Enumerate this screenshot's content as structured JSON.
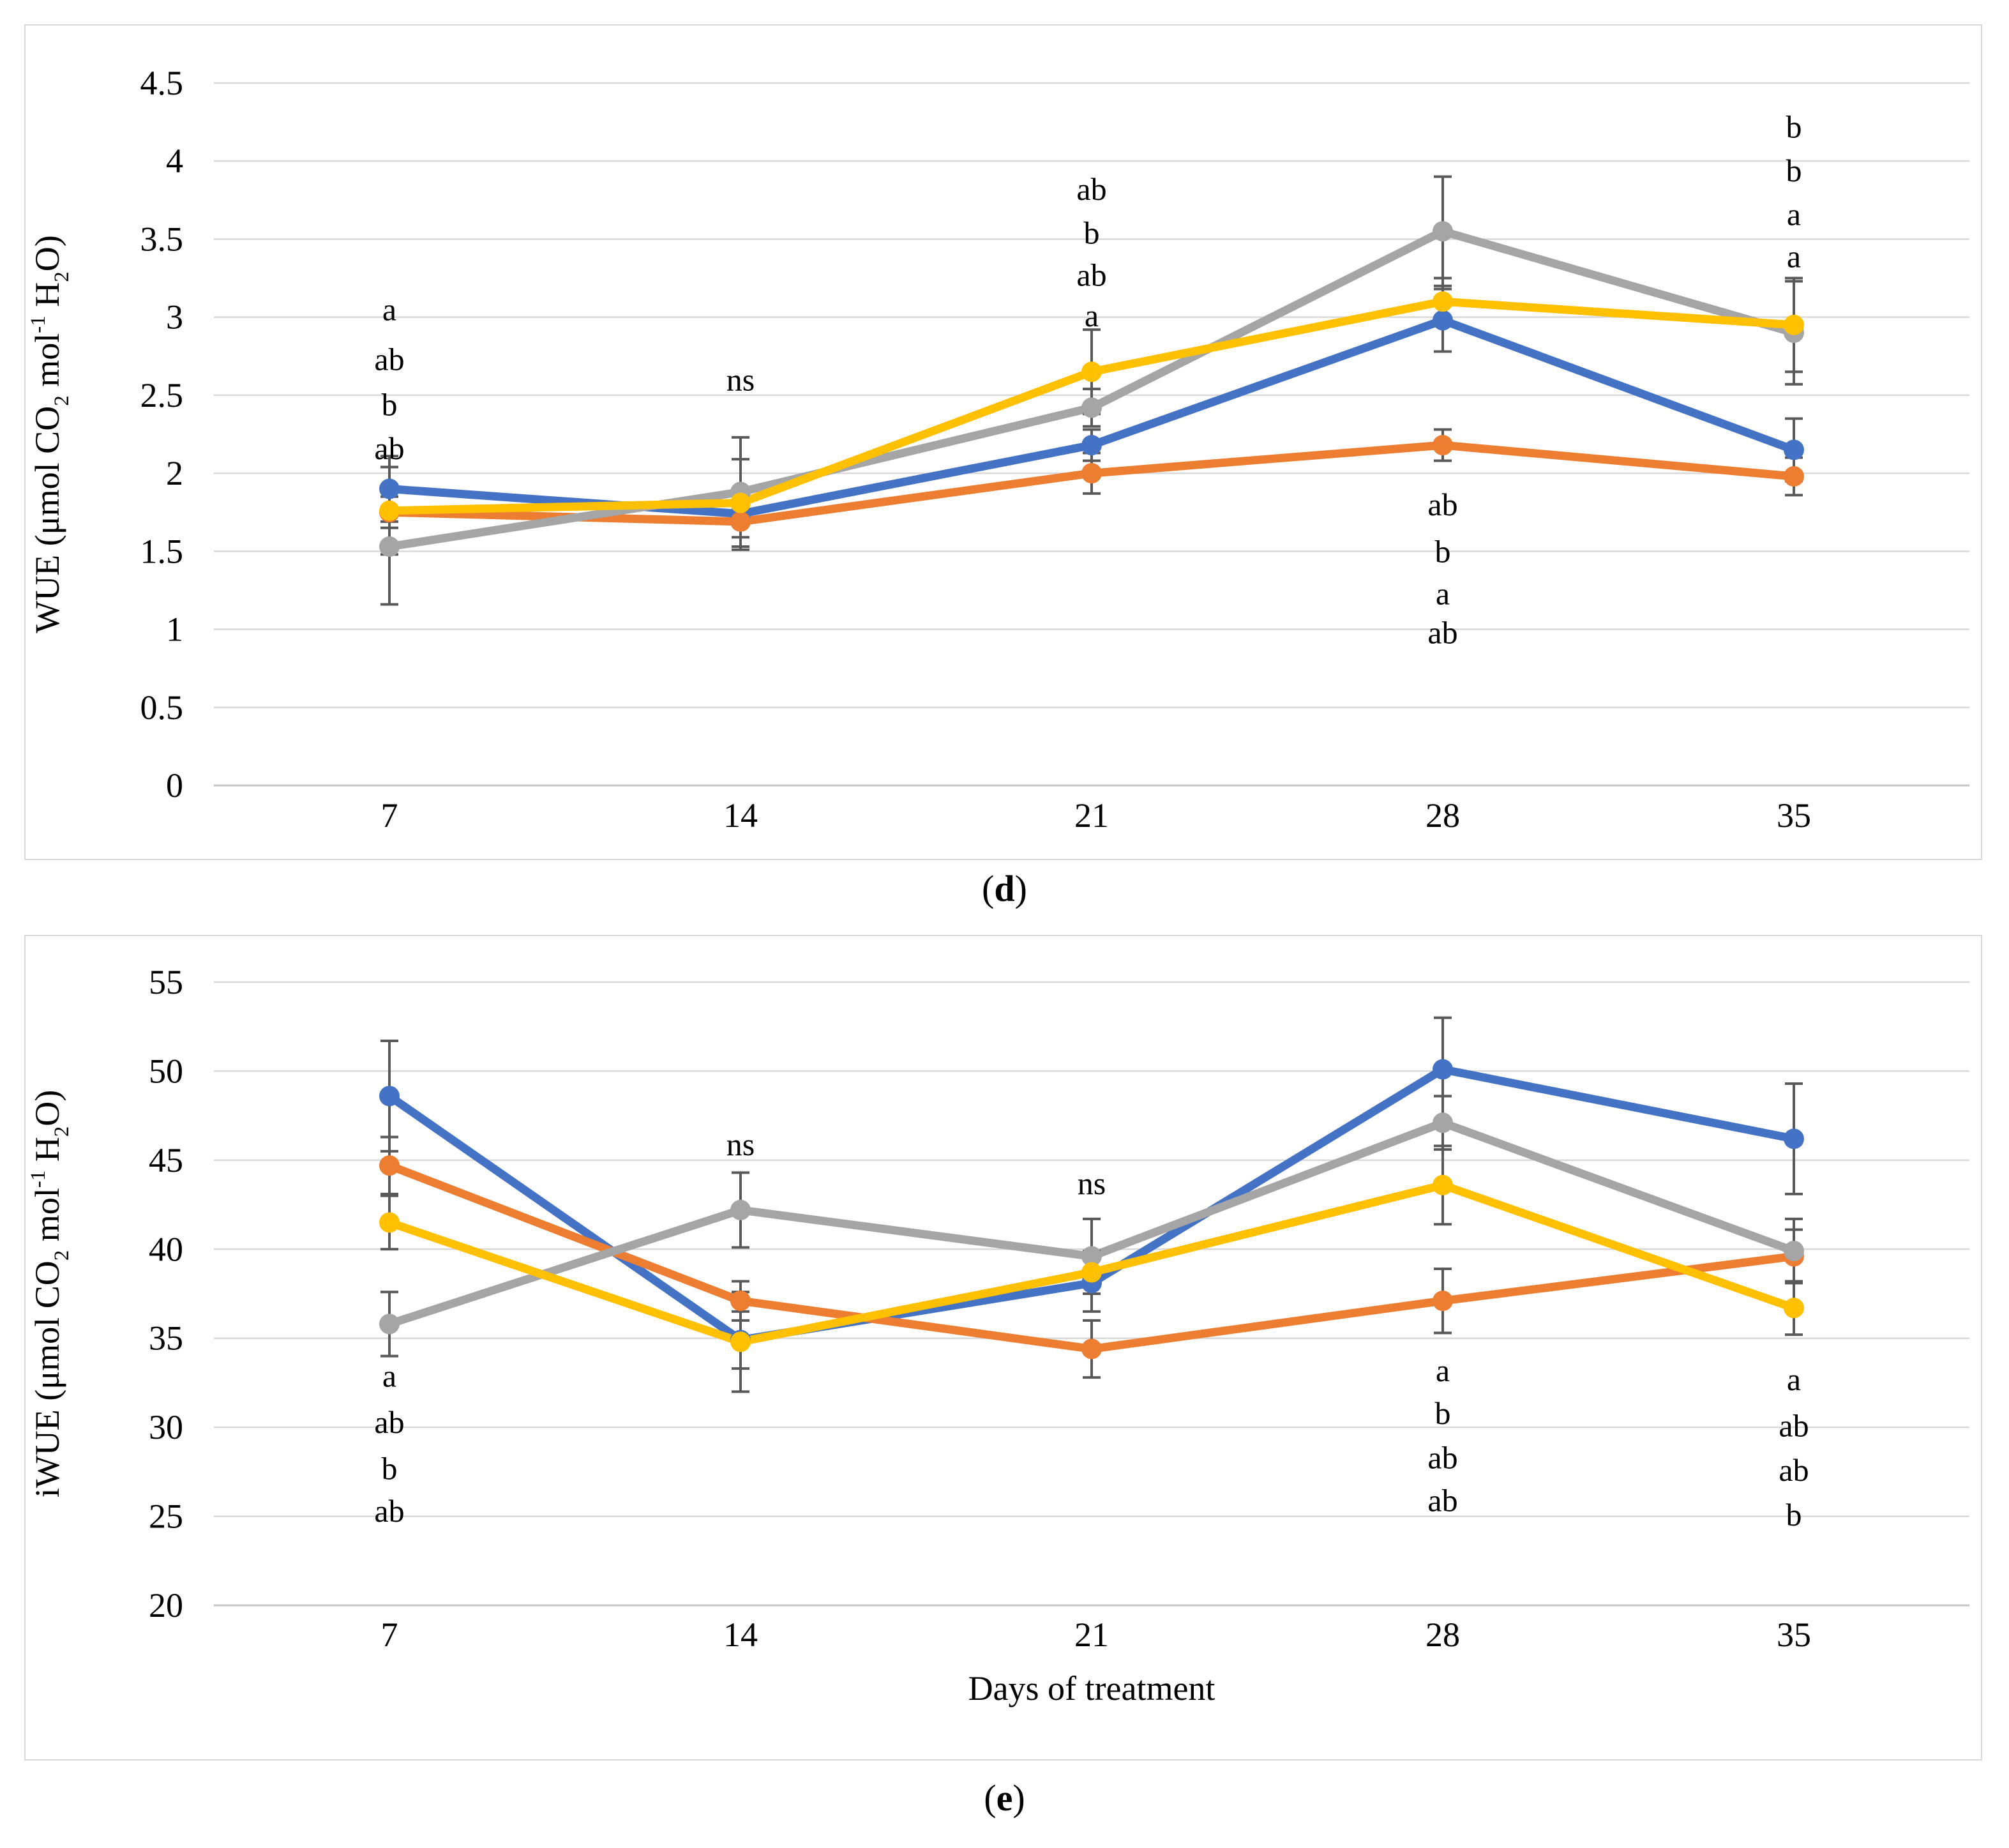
{
  "figure": {
    "panel_d": {
      "prefix": "(",
      "letter": "d",
      "suffix": ")"
    },
    "panel_e": {
      "prefix": "(",
      "letter": "e",
      "suffix": ")"
    }
  },
  "colors": {
    "background": "#FFFFFF",
    "box_border": "#D9D9D9",
    "gridline": "#D9D9D9",
    "axis_line": "#C6C6C6",
    "error_bar": "#595959",
    "series": {
      "blue": "#4472C4",
      "orange": "#ED7D31",
      "gray": "#A5A5A5",
      "yellow": "#FFC000"
    },
    "letters": {
      "blue": "#2F5597",
      "orange": "#C55A11",
      "gray": "#7F7F7F",
      "yellow": "#FFC000",
      "black": "#000000"
    }
  },
  "chart_data": [
    {
      "id": "wue",
      "type": "line",
      "panel": "d",
      "title": "",
      "ylabel": "WUE (μmol CO2 mol-1 H2O)",
      "ylabel_segments": [
        {
          "text": "WUE (μmol CO"
        },
        {
          "text": "2",
          "style": "sub"
        },
        {
          "text": " mol"
        },
        {
          "text": "-1",
          "style": "sup"
        },
        {
          "text": " H"
        },
        {
          "text": "2",
          "style": "sub"
        },
        {
          "text": "O)"
        }
      ],
      "xlabel": "",
      "categories": [
        "7",
        "14",
        "21",
        "28",
        "35"
      ],
      "ylim": [
        0,
        4.5
      ],
      "ytick_step": 0.5,
      "ytick_labels": [
        "4.5",
        "4",
        "3.5",
        "3",
        "2.5",
        "2",
        "1.5",
        "1",
        "0.5",
        "0"
      ],
      "grid": "horizontal",
      "legend": "none",
      "series": [
        {
          "name": "blue",
          "color_key": "blue",
          "values": [
            1.9,
            1.74,
            2.18,
            2.98,
            2.15
          ],
          "errors": [
            0.21,
            0.15,
            0.1,
            0.2,
            0.2
          ]
        },
        {
          "name": "orange",
          "color_key": "orange",
          "values": [
            1.75,
            1.69,
            2.0,
            2.18,
            1.98
          ],
          "errors": [
            0.1,
            0.18,
            0.13,
            0.1,
            0.12
          ]
        },
        {
          "name": "gray",
          "color_key": "gray",
          "values": [
            1.53,
            1.88,
            2.42,
            3.55,
            2.9
          ],
          "errors": [
            0.37,
            0.35,
            0.12,
            0.35,
            0.33
          ]
        },
        {
          "name": "yellow",
          "color_key": "yellow",
          "values": [
            1.76,
            1.81,
            2.65,
            3.1,
            2.95
          ],
          "errors": [
            0.28,
            0.28,
            0.27,
            0.15,
            0.3
          ]
        }
      ],
      "annotations": [
        {
          "x": "7",
          "y": 3.05,
          "text": "a",
          "color": "blue"
        },
        {
          "x": "7",
          "y": 2.73,
          "text": "ab",
          "color": "orange"
        },
        {
          "x": "7",
          "y": 2.44,
          "text": "b",
          "color": "gray"
        },
        {
          "x": "7",
          "y": 2.16,
          "text": "ab",
          "color": "yellow"
        },
        {
          "x": "14",
          "y": 2.6,
          "text": "ns",
          "color": "black"
        },
        {
          "x": "21",
          "y": 3.82,
          "text": "ab",
          "color": "blue"
        },
        {
          "x": "21",
          "y": 3.54,
          "text": "b",
          "color": "orange"
        },
        {
          "x": "21",
          "y": 3.27,
          "text": "ab",
          "color": "gray"
        },
        {
          "x": "21",
          "y": 3.01,
          "text": "a",
          "color": "yellow"
        },
        {
          "x": "28",
          "y": 1.8,
          "text": "ab",
          "color": "blue"
        },
        {
          "x": "28",
          "y": 1.5,
          "text": "b",
          "color": "orange"
        },
        {
          "x": "28",
          "y": 1.23,
          "text": "a",
          "color": "gray"
        },
        {
          "x": "28",
          "y": 0.98,
          "text": "ab",
          "color": "yellow"
        },
        {
          "x": "35",
          "y": 4.22,
          "text": "b",
          "color": "blue"
        },
        {
          "x": "35",
          "y": 3.94,
          "text": "b",
          "color": "orange"
        },
        {
          "x": "35",
          "y": 3.66,
          "text": "a",
          "color": "gray"
        },
        {
          "x": "35",
          "y": 3.39,
          "text": "a",
          "color": "yellow"
        }
      ]
    },
    {
      "id": "iwue",
      "type": "line",
      "panel": "e",
      "title": "",
      "ylabel": "iWUE (μmol CO2 mol-1 H2O)",
      "ylabel_segments": [
        {
          "text": "iWUE (μmol CO"
        },
        {
          "text": "2",
          "style": "sub"
        },
        {
          "text": " mol"
        },
        {
          "text": "-1",
          "style": "sup"
        },
        {
          "text": " H"
        },
        {
          "text": "2",
          "style": "sub"
        },
        {
          "text": "O)"
        }
      ],
      "xlabel": "Days of treatment",
      "categories": [
        "7",
        "14",
        "21",
        "28",
        "35"
      ],
      "ylim": [
        20,
        55
      ],
      "ytick_step": 5,
      "ytick_labels": [
        "55",
        "50",
        "45",
        "40",
        "35",
        "30",
        "25",
        "20"
      ],
      "grid": "horizontal",
      "legend": "none",
      "series": [
        {
          "name": "blue",
          "color_key": "blue",
          "values": [
            48.6,
            34.9,
            38.1,
            50.1,
            46.2
          ],
          "errors": [
            3.1,
            1.6,
            1.6,
            2.9,
            3.1
          ]
        },
        {
          "name": "orange",
          "color_key": "orange",
          "values": [
            44.7,
            37.1,
            34.4,
            37.1,
            39.6
          ],
          "errors": [
            1.6,
            1.1,
            1.6,
            1.8,
            1.5
          ]
        },
        {
          "name": "gray",
          "color_key": "gray",
          "values": [
            35.8,
            42.2,
            39.6,
            47.1,
            39.9
          ],
          "errors": [
            1.8,
            2.1,
            2.1,
            1.5,
            1.8
          ]
        },
        {
          "name": "yellow",
          "color_key": "yellow",
          "values": [
            41.5,
            34.8,
            38.7,
            43.6,
            36.7
          ],
          "errors": [
            1.5,
            2.8,
            1.2,
            2.2,
            1.5
          ]
        }
      ],
      "annotations": [
        {
          "x": "7",
          "y": 32.9,
          "text": "a",
          "color": "blue"
        },
        {
          "x": "7",
          "y": 30.3,
          "text": "ab",
          "color": "orange"
        },
        {
          "x": "7",
          "y": 27.7,
          "text": "b",
          "color": "gray"
        },
        {
          "x": "7",
          "y": 25.3,
          "text": "ab",
          "color": "yellow"
        },
        {
          "x": "14",
          "y": 45.9,
          "text": "ns",
          "color": "black"
        },
        {
          "x": "21",
          "y": 43.7,
          "text": "ns",
          "color": "black"
        },
        {
          "x": "28",
          "y": 33.2,
          "text": "a",
          "color": "blue"
        },
        {
          "x": "28",
          "y": 30.8,
          "text": "b",
          "color": "orange"
        },
        {
          "x": "28",
          "y": 28.3,
          "text": "ab",
          "color": "gray"
        },
        {
          "x": "28",
          "y": 25.9,
          "text": "ab",
          "color": "yellow"
        },
        {
          "x": "35",
          "y": 32.7,
          "text": "a",
          "color": "blue"
        },
        {
          "x": "35",
          "y": 30.1,
          "text": "ab",
          "color": "orange"
        },
        {
          "x": "35",
          "y": 27.6,
          "text": "ab",
          "color": "gray"
        },
        {
          "x": "35",
          "y": 25.1,
          "text": "b",
          "color": "yellow"
        }
      ]
    }
  ]
}
